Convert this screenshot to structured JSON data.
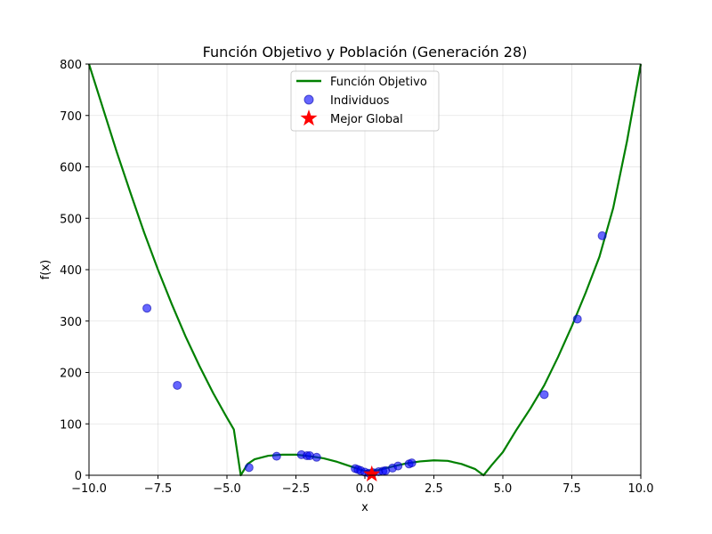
{
  "chart_data": {
    "type": "line",
    "title": "Función Objetivo y Población (Generación 28)",
    "xlabel": "x",
    "ylabel": "f(x)",
    "xlim": [
      -10,
      10
    ],
    "ylim": [
      0,
      800
    ],
    "x_ticks": [
      -10.0,
      -7.5,
      -5.0,
      -2.5,
      0.0,
      2.5,
      5.0,
      7.5,
      10.0
    ],
    "x_tick_labels": [
      "−10.0",
      "−7.5",
      "−5.0",
      "−2.5",
      "0.0",
      "2.5",
      "5.0",
      "7.5",
      "10.0"
    ],
    "y_ticks": [
      0,
      100,
      200,
      300,
      400,
      500,
      600,
      700,
      800
    ],
    "y_tick_labels": [
      "0",
      "100",
      "200",
      "300",
      "400",
      "500",
      "600",
      "700",
      "800"
    ],
    "grid": true,
    "legend_position": "top-center",
    "series": [
      {
        "name": "Función Objetivo",
        "kind": "line",
        "color": "#008000",
        "x": [
          -10,
          -9.5,
          -9,
          -8.5,
          -8,
          -7.5,
          -7,
          -6.5,
          -6,
          -5.5,
          -5,
          -4.75,
          -4.5,
          -4.25,
          -4,
          -3.5,
          -3,
          -2.5,
          -2,
          -1.5,
          -1,
          -0.5,
          0,
          0.5,
          1,
          1.5,
          2,
          2.5,
          3,
          3.5,
          4,
          4.3,
          4.6,
          5,
          5.5,
          6,
          6.5,
          7,
          7.5,
          8,
          8.5,
          9,
          9.5,
          10
        ],
        "y": [
          800,
          715,
          630,
          550,
          472,
          400,
          333,
          270,
          213,
          160,
          112,
          89,
          0,
          22,
          31,
          38,
          40,
          40,
          37,
          33,
          26,
          17,
          8,
          10,
          17,
          23,
          27,
          29,
          28,
          22,
          12,
          0,
          20,
          45,
          89,
          130,
          175,
          230,
          290,
          355,
          425,
          520,
          650,
          800
        ]
      },
      {
        "name": "Individuos",
        "kind": "scatter",
        "color": "#0000ff",
        "x": [
          -7.9,
          -6.8,
          -4.2,
          -3.2,
          -2.3,
          -2.1,
          -2.0,
          -1.75,
          -0.35,
          -0.25,
          -0.15,
          0.0,
          0.15,
          0.3,
          0.5,
          0.65,
          0.75,
          1.0,
          1.2,
          1.6,
          1.7,
          6.5,
          7.7,
          8.6
        ],
        "y": [
          325,
          175,
          15,
          37,
          40,
          38,
          38,
          35,
          13,
          11,
          9,
          6,
          4,
          5,
          7,
          8,
          9,
          14,
          18,
          22,
          24,
          157,
          304,
          466
        ]
      },
      {
        "name": "Mejor Global",
        "kind": "marker",
        "color": "#ff0000",
        "x": [
          0.25
        ],
        "y": [
          2
        ]
      }
    ]
  }
}
